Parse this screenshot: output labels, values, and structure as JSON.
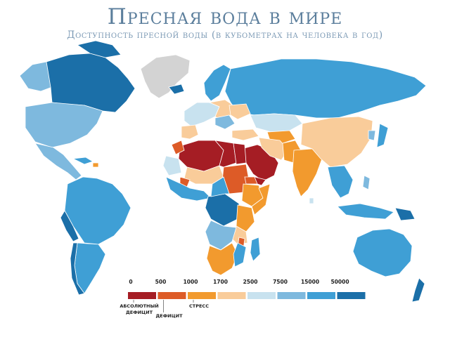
{
  "title": "Пресная вода в мире",
  "subtitle": "Доступность пресной воды (в кубометрах на человека в год)",
  "colors": {
    "background": "#ffffff",
    "no_data": "#d3d3d3",
    "stroke": "#ffffff"
  },
  "legend": {
    "thresholds": [
      "0",
      "500",
      "1000",
      "1700",
      "2500",
      "7500",
      "15000",
      "50000"
    ],
    "classes": [
      {
        "color": "#a51d24"
      },
      {
        "color": "#dd5b27"
      },
      {
        "color": "#f29a2e"
      },
      {
        "color": "#f9cc9a"
      },
      {
        "color": "#c8e2ef"
      },
      {
        "color": "#7eb9de"
      },
      {
        "color": "#3f9fd5"
      },
      {
        "color": "#1b6fa8"
      }
    ],
    "categories": [
      {
        "lines": [
          "АБСОЛЮТНЫЙ",
          "ДЕФИЦИТ"
        ]
      },
      {
        "lines": [
          "ДЕФИЦИТ"
        ]
      },
      {
        "lines": [
          "СТРЕСС"
        ]
      }
    ]
  }
}
